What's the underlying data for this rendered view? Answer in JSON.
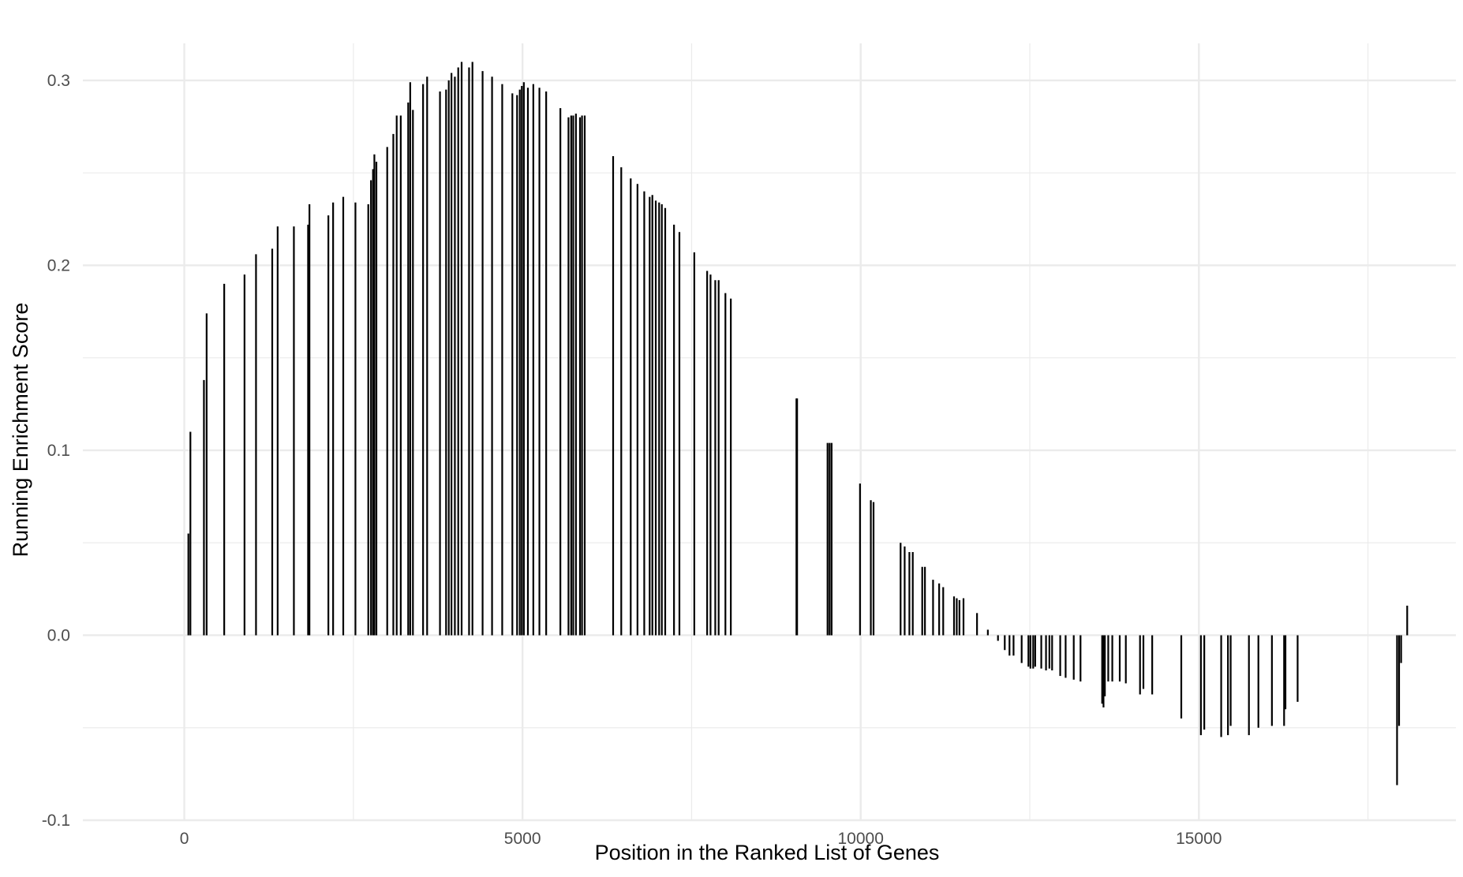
{
  "chart_data": {
    "type": "bar",
    "title": "",
    "xlabel": "Position in the Ranked List of Genes",
    "ylabel": "Running Enrichment Score",
    "xlim": [
      -1500,
      18800
    ],
    "ylim": [
      -0.1,
      0.32
    ],
    "x_ticks": [
      0,
      5000,
      10000,
      15000
    ],
    "x_tick_labels": [
      "0",
      "5000",
      "10000",
      "15000"
    ],
    "y_ticks": [
      -0.1,
      0.0,
      0.1,
      0.2,
      0.3
    ],
    "y_tick_labels": [
      "-0.1",
      "0.0",
      "0.1",
      "0.2",
      "0.3"
    ],
    "grid": true,
    "legend": "none",
    "bar_color": "#000000",
    "grid_color": "#ebebeb",
    "x": [
      60,
      90,
      290,
      330,
      590,
      890,
      1060,
      1300,
      1380,
      1620,
      1830,
      1850,
      2130,
      2200,
      2350,
      2530,
      2720,
      2760,
      2790,
      2810,
      2840,
      3000,
      3090,
      3140,
      3200,
      3310,
      3340,
      3380,
      3530,
      3590,
      3780,
      3870,
      3910,
      3950,
      4000,
      4050,
      4100,
      4210,
      4260,
      4410,
      4550,
      4700,
      4850,
      4920,
      4960,
      4990,
      5020,
      5080,
      5160,
      5250,
      5350,
      5560,
      5680,
      5720,
      5750,
      5790,
      5850,
      5880,
      5920,
      6340,
      6460,
      6600,
      6700,
      6800,
      6880,
      6920,
      6970,
      7020,
      7060,
      7110,
      7240,
      7320,
      7540,
      7730,
      7780,
      7850,
      7900,
      8000,
      8080,
      9050,
      9060,
      9510,
      9540,
      9570,
      9990,
      10150,
      10190,
      10590,
      10650,
      10720,
      10770,
      10910,
      10950,
      11070,
      11160,
      11220,
      11380,
      11420,
      11460,
      11520,
      11720,
      11880,
      12030,
      12130,
      12200,
      12260,
      12380,
      12480,
      12510,
      12550,
      12580,
      12670,
      12740,
      12790,
      12830,
      12950,
      13030,
      13150,
      13250,
      13570,
      13590,
      13610,
      13660,
      13720,
      13830,
      13920,
      14130,
      14180,
      14310,
      14740,
      15030,
      15080,
      15330,
      15430,
      15470,
      15740,
      15880,
      16080,
      16260,
      16280,
      16460,
      17930,
      17960,
      17990,
      18080
    ],
    "values": [
      0.055,
      0.11,
      0.138,
      0.174,
      0.19,
      0.195,
      0.206,
      0.209,
      0.221,
      0.221,
      0.222,
      0.233,
      0.227,
      0.234,
      0.237,
      0.234,
      0.233,
      0.246,
      0.252,
      0.26,
      0.256,
      0.264,
      0.271,
      0.281,
      0.281,
      0.288,
      0.299,
      0.284,
      0.298,
      0.302,
      0.294,
      0.295,
      0.3,
      0.304,
      0.302,
      0.307,
      0.31,
      0.307,
      0.31,
      0.305,
      0.302,
      0.298,
      0.293,
      0.292,
      0.295,
      0.297,
      0.299,
      0.296,
      0.298,
      0.296,
      0.294,
      0.285,
      0.28,
      0.281,
      0.281,
      0.282,
      0.28,
      0.281,
      0.281,
      0.259,
      0.253,
      0.247,
      0.244,
      0.24,
      0.237,
      0.238,
      0.235,
      0.234,
      0.233,
      0.231,
      0.222,
      0.218,
      0.207,
      0.197,
      0.195,
      0.192,
      0.192,
      0.185,
      0.182,
      0.128,
      0.128,
      0.104,
      0.104,
      0.104,
      0.082,
      0.073,
      0.072,
      0.05,
      0.048,
      0.045,
      0.045,
      0.037,
      0.037,
      0.03,
      0.028,
      0.026,
      0.021,
      0.02,
      0.019,
      0.02,
      0.012,
      0.003,
      -0.003,
      -0.008,
      -0.011,
      -0.011,
      -0.015,
      -0.017,
      -0.018,
      -0.018,
      -0.017,
      -0.018,
      -0.019,
      -0.018,
      -0.019,
      -0.022,
      -0.023,
      -0.024,
      -0.025,
      -0.037,
      -0.039,
      -0.033,
      -0.025,
      -0.025,
      -0.025,
      -0.026,
      -0.032,
      -0.029,
      -0.032,
      -0.045,
      -0.054,
      -0.051,
      -0.055,
      -0.054,
      -0.049,
      -0.054,
      -0.05,
      -0.049,
      -0.049,
      -0.04,
      -0.036,
      -0.081,
      -0.049,
      -0.015,
      0.016
    ]
  }
}
